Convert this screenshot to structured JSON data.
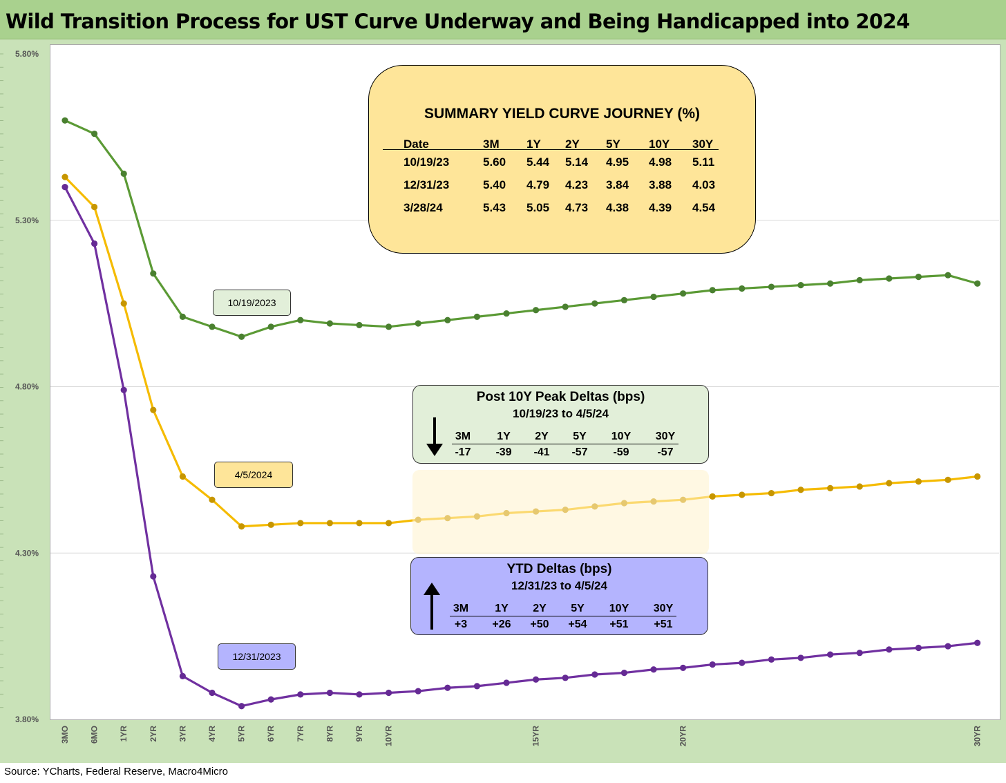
{
  "title": "Wild Transition Process for UST Curve Underway and Being Handicapped into 2024",
  "source": "Source: YCharts, Federal Reserve, Macro4Micro",
  "chart_data": {
    "type": "line",
    "title": "Wild Transition Process for UST Curve Underway and Being Handicapped into 2024",
    "xlabel": "",
    "ylabel": "",
    "ylim": [
      3.8,
      5.8
    ],
    "yticks": [
      "5.80%",
      "5.30%",
      "4.80%",
      "4.30%",
      "3.80%"
    ],
    "ytick_values": [
      5.8,
      5.3,
      4.8,
      4.3,
      3.8
    ],
    "x_maturities_years": [
      0.25,
      0.5,
      1,
      2,
      3,
      4,
      5,
      6,
      7,
      8,
      9,
      10,
      11,
      12,
      13,
      14,
      15,
      16,
      17,
      18,
      19,
      20,
      21,
      22,
      23,
      24,
      25,
      26,
      27,
      28,
      29,
      30
    ],
    "x_tick_labels": [
      {
        "at": 0.25,
        "label": "3MO"
      },
      {
        "at": 0.5,
        "label": "6MO"
      },
      {
        "at": 1,
        "label": "1YR"
      },
      {
        "at": 2,
        "label": "2YR"
      },
      {
        "at": 3,
        "label": "3YR"
      },
      {
        "at": 4,
        "label": "4YR"
      },
      {
        "at": 5,
        "label": "5YR"
      },
      {
        "at": 6,
        "label": "6YR"
      },
      {
        "at": 7,
        "label": "7YR"
      },
      {
        "at": 8,
        "label": "8YR"
      },
      {
        "at": 9,
        "label": "9YR"
      },
      {
        "at": 10,
        "label": "10YR"
      },
      {
        "at": 15,
        "label": "15YR"
      },
      {
        "at": 20,
        "label": "20YR"
      },
      {
        "at": 30,
        "label": "30YR"
      }
    ],
    "grid": true,
    "series": [
      {
        "name": "10/19/2023",
        "color": "#5b9a35",
        "values": [
          5.6,
          5.56,
          5.44,
          5.14,
          5.01,
          4.98,
          4.95,
          4.98,
          5.0,
          4.99,
          4.985,
          4.98,
          4.99,
          5.0,
          5.01,
          5.02,
          5.03,
          5.04,
          5.05,
          5.06,
          5.07,
          5.08,
          5.09,
          5.095,
          5.1,
          5.105,
          5.11,
          5.12,
          5.125,
          5.13,
          5.135,
          5.11
        ]
      },
      {
        "name": "4/5/2024",
        "color": "#f5bb00",
        "values": [
          5.43,
          5.34,
          5.05,
          4.73,
          4.53,
          4.46,
          4.38,
          4.385,
          4.39,
          4.39,
          4.39,
          4.39,
          4.4,
          4.405,
          4.41,
          4.42,
          4.425,
          4.43,
          4.44,
          4.45,
          4.455,
          4.46,
          4.47,
          4.475,
          4.48,
          4.49,
          4.495,
          4.5,
          4.51,
          4.515,
          4.52,
          4.53
        ]
      },
      {
        "name": "12/31/2023",
        "color": "#7030a0",
        "values": [
          5.4,
          5.23,
          4.79,
          4.23,
          3.93,
          3.88,
          3.84,
          3.86,
          3.875,
          3.88,
          3.875,
          3.88,
          3.885,
          3.895,
          3.9,
          3.91,
          3.92,
          3.925,
          3.935,
          3.94,
          3.95,
          3.955,
          3.965,
          3.97,
          3.98,
          3.985,
          3.995,
          4.0,
          4.01,
          4.015,
          4.02,
          4.03
        ]
      }
    ]
  },
  "series_labels": {
    "s1019": "10/19/2023",
    "s0405": "4/5/2024",
    "s1231": "12/31/2023"
  },
  "summary_table": {
    "title": "SUMMARY YIELD CURVE JOURNEY (%)",
    "headers": [
      "Date",
      "3M",
      "1Y",
      "2Y",
      "5Y",
      "10Y",
      "30Y"
    ],
    "rows": [
      [
        "10/19/23",
        "5.60",
        "5.44",
        "5.14",
        "4.95",
        "4.98",
        "5.11"
      ],
      [
        "12/31/23",
        "5.40",
        "4.79",
        "4.23",
        "3.84",
        "3.88",
        "4.03"
      ],
      [
        "3/28/24",
        "5.43",
        "5.05",
        "4.73",
        "4.38",
        "4.39",
        "4.54"
      ]
    ]
  },
  "peak_deltas": {
    "title": "Post 10Y Peak Deltas (bps)",
    "subtitle": "10/19/23 to 4/5/24",
    "arrow": "down-arrow-icon",
    "headers": [
      "3M",
      "1Y",
      "2Y",
      "5Y",
      "10Y",
      "30Y"
    ],
    "values": [
      "-17",
      "-39",
      "-41",
      "-57",
      "-59",
      "-57"
    ]
  },
  "ytd_deltas": {
    "title": "YTD Deltas (bps)",
    "subtitle": "12/31/23 to 4/5/24",
    "arrow": "up-arrow-icon",
    "headers": [
      "3M",
      "1Y",
      "2Y",
      "5Y",
      "10Y",
      "30Y"
    ],
    "values": [
      "+3",
      "+26",
      "+50",
      "+54",
      "+51",
      "+51"
    ]
  }
}
